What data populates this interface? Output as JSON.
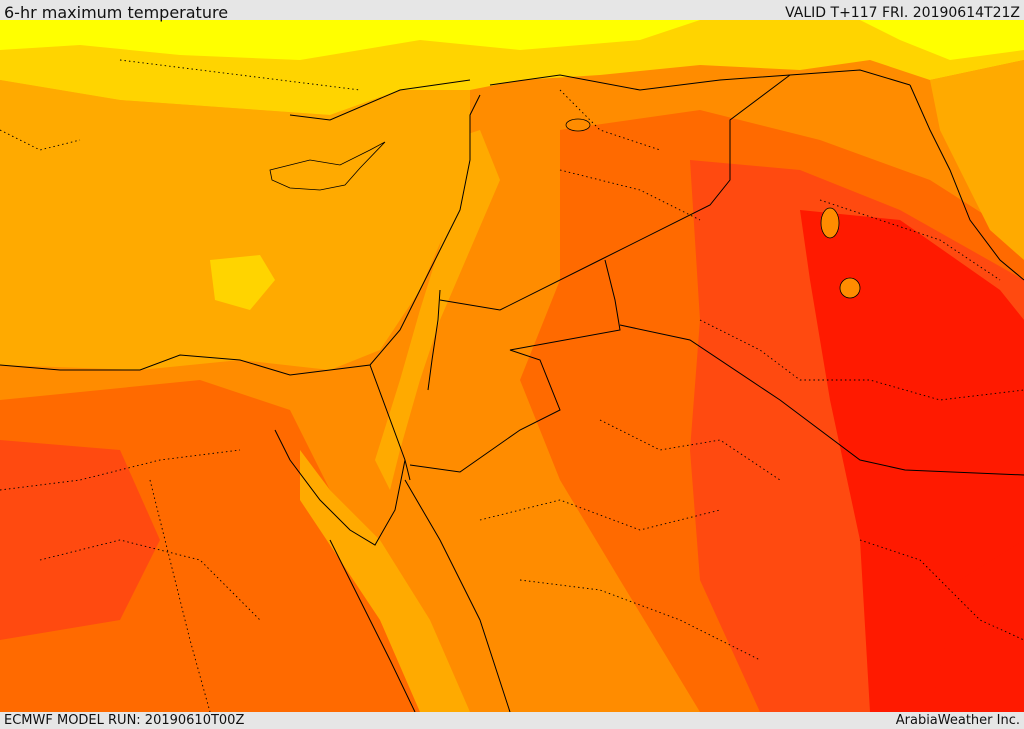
{
  "header": {
    "title": "6-hr maximum temperature",
    "valid": "VALID T+117 FRI. 20190614T21Z"
  },
  "footer": {
    "model_run": "ECMWF MODEL RUN: 20190610T00Z",
    "credit": "ArabiaWeather Inc."
  },
  "colors": {
    "coolest": "#ffff00",
    "cool": "#ffd400",
    "mild": "#ffaa00",
    "warm": "#ff8c00",
    "hot": "#ff6a00",
    "hotter": "#ff4a10",
    "hottest": "#ff1a00",
    "boundary": "#000000"
  }
}
